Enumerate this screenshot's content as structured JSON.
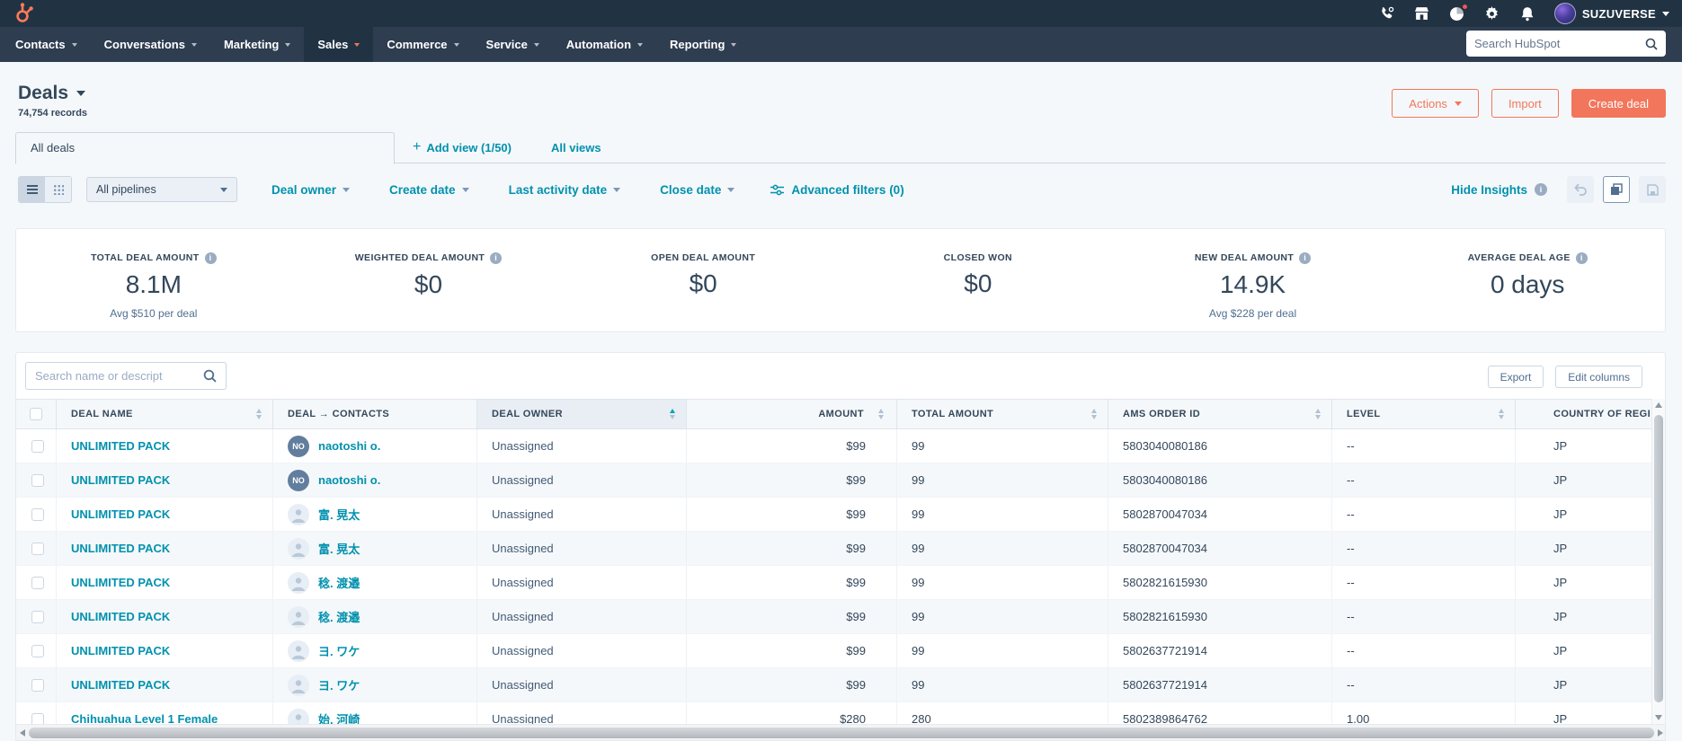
{
  "topbar": {
    "search_placeholder": "Search HubSpot",
    "account_name": "SUZUVERSE",
    "nav": [
      {
        "label": "Contacts"
      },
      {
        "label": "Conversations"
      },
      {
        "label": "Marketing"
      },
      {
        "label": "Sales",
        "active": true
      },
      {
        "label": "Commerce"
      },
      {
        "label": "Service"
      },
      {
        "label": "Automation"
      },
      {
        "label": "Reporting"
      }
    ]
  },
  "page": {
    "title": "Deals",
    "records": "74,754 records",
    "actions_label": "Actions",
    "import_label": "Import",
    "create_deal_label": "Create deal"
  },
  "tabs": {
    "active": "All deals",
    "add_view": "Add view (1/50)",
    "all_views": "All views"
  },
  "filters": {
    "pipelines": "All pipelines",
    "quick": [
      "Deal owner",
      "Create date",
      "Last activity date",
      "Close date"
    ],
    "advanced": "Advanced filters (0)",
    "hide_insights": "Hide Insights"
  },
  "insights": [
    {
      "label": "TOTAL DEAL AMOUNT",
      "info": true,
      "value": "8.1M",
      "sub": "Avg $510 per deal"
    },
    {
      "label": "WEIGHTED DEAL AMOUNT",
      "info": true,
      "value": "$0",
      "sub": ""
    },
    {
      "label": "OPEN DEAL AMOUNT",
      "info": false,
      "value": "$0",
      "sub": ""
    },
    {
      "label": "CLOSED WON",
      "info": false,
      "value": "$0",
      "sub": ""
    },
    {
      "label": "NEW DEAL AMOUNT",
      "info": true,
      "value": "14.9K",
      "sub": "Avg $228 per deal"
    },
    {
      "label": "AVERAGE DEAL AGE",
      "info": true,
      "value": "0 days",
      "sub": ""
    }
  ],
  "table": {
    "search_placeholder": "Search name or descript",
    "export_label": "Export",
    "edit_columns_label": "Edit columns",
    "columns": [
      {
        "label": "DEAL NAME",
        "sort": "both"
      },
      {
        "label": "DEAL → CONTACTS",
        "sort": "none"
      },
      {
        "label": "DEAL OWNER",
        "sort": "asc"
      },
      {
        "label": "AMOUNT",
        "sort": "both",
        "align": "right"
      },
      {
        "label": "TOTAL AMOUNT",
        "sort": "both"
      },
      {
        "label": "AMS ORDER ID",
        "sort": "both"
      },
      {
        "label": "LEVEL",
        "sort": "both"
      },
      {
        "label": "COUNTRY OF REGI",
        "sort": "none"
      }
    ],
    "rows": [
      {
        "name": "UNLIMITED PACK",
        "contact": "naotoshi o.",
        "avatar_initials": "NO",
        "owner": "Unassigned",
        "amount": "$99",
        "total": "99",
        "ams": "5803040080186",
        "level": "--",
        "country": "JP"
      },
      {
        "name": "UNLIMITED PACK",
        "contact": "naotoshi o.",
        "avatar_initials": "NO",
        "owner": "Unassigned",
        "amount": "$99",
        "total": "99",
        "ams": "5803040080186",
        "level": "--",
        "country": "JP"
      },
      {
        "name": "UNLIMITED PACK",
        "contact": "富. 晃太",
        "avatar_initials": "",
        "owner": "Unassigned",
        "amount": "$99",
        "total": "99",
        "ams": "5802870047034",
        "level": "--",
        "country": "JP"
      },
      {
        "name": "UNLIMITED PACK",
        "contact": "富. 晃太",
        "avatar_initials": "",
        "owner": "Unassigned",
        "amount": "$99",
        "total": "99",
        "ams": "5802870047034",
        "level": "--",
        "country": "JP"
      },
      {
        "name": "UNLIMITED PACK",
        "contact": "稔. 渡邉",
        "avatar_initials": "",
        "owner": "Unassigned",
        "amount": "$99",
        "total": "99",
        "ams": "5802821615930",
        "level": "--",
        "country": "JP"
      },
      {
        "name": "UNLIMITED PACK",
        "contact": "稔. 渡邉",
        "avatar_initials": "",
        "owner": "Unassigned",
        "amount": "$99",
        "total": "99",
        "ams": "5802821615930",
        "level": "--",
        "country": "JP"
      },
      {
        "name": "UNLIMITED PACK",
        "contact": "ヨ. ワケ",
        "avatar_initials": "",
        "owner": "Unassigned",
        "amount": "$99",
        "total": "99",
        "ams": "5802637721914",
        "level": "--",
        "country": "JP"
      },
      {
        "name": "UNLIMITED PACK",
        "contact": "ヨ. ワケ",
        "avatar_initials": "",
        "owner": "Unassigned",
        "amount": "$99",
        "total": "99",
        "ams": "5802637721914",
        "level": "--",
        "country": "JP"
      },
      {
        "name": "Chihuahua Level 1 Female",
        "contact": "始. 河崎",
        "avatar_initials": "",
        "owner": "Unassigned",
        "amount": "$280",
        "total": "280",
        "ams": "5802389864762",
        "level": "1.00",
        "country": "JP"
      }
    ]
  }
}
